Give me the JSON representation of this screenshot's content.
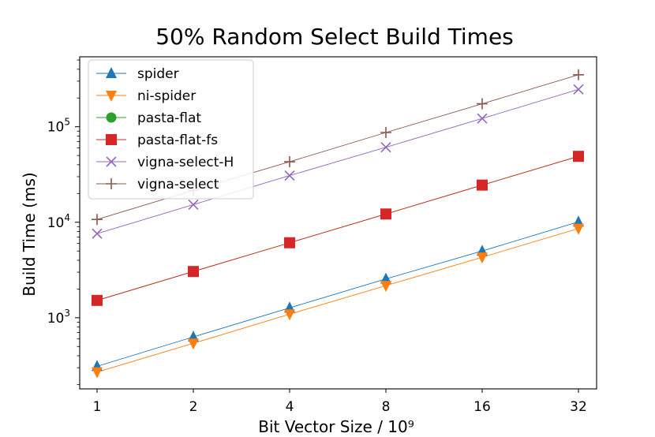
{
  "chart_data": {
    "type": "line",
    "title": "50% Random Select Build Times",
    "xlabel": "Bit Vector Size / 10⁹",
    "ylabel": "Build Time (ms)",
    "x_scale": "log2",
    "y_scale": "log10",
    "x": [
      1,
      2,
      4,
      8,
      16,
      32
    ],
    "x_tick_labels": [
      "1",
      "2",
      "4",
      "8",
      "16",
      "32"
    ],
    "y_ticks": [
      {
        "value": 1000,
        "base": "10",
        "exp": "3"
      },
      {
        "value": 10000,
        "base": "10",
        "exp": "4"
      },
      {
        "value": 100000,
        "base": "10",
        "exp": "5"
      }
    ],
    "ylim": [
      180,
      540000
    ],
    "legend_position": "top-left",
    "grid": false,
    "series": [
      {
        "name": "spider",
        "color": "#1f77b4",
        "marker": "triangle-up",
        "values": [
          310,
          630,
          1270,
          2550,
          5000,
          10100
        ]
      },
      {
        "name": "ni-spider",
        "color": "#ff7f0e",
        "marker": "triangle-down",
        "values": [
          270,
          540,
          1090,
          2170,
          4300,
          8600
        ]
      },
      {
        "name": "pasta-flat",
        "color": "#2ca02c",
        "marker": "circle",
        "values": [
          1520,
          3050,
          6100,
          12200,
          24500,
          49000
        ]
      },
      {
        "name": "pasta-flat-fs",
        "color": "#d62728",
        "marker": "square",
        "values": [
          1520,
          3050,
          6100,
          12200,
          24500,
          49000
        ]
      },
      {
        "name": "vigna-select-H",
        "color": "#9467bd",
        "marker": "x",
        "values": [
          7600,
          15300,
          30800,
          61000,
          122000,
          246000
        ]
      },
      {
        "name": "vigna-select",
        "color": "#8c564b",
        "marker": "plus",
        "values": [
          10700,
          21600,
          43000,
          87000,
          174000,
          350000
        ]
      }
    ]
  }
}
